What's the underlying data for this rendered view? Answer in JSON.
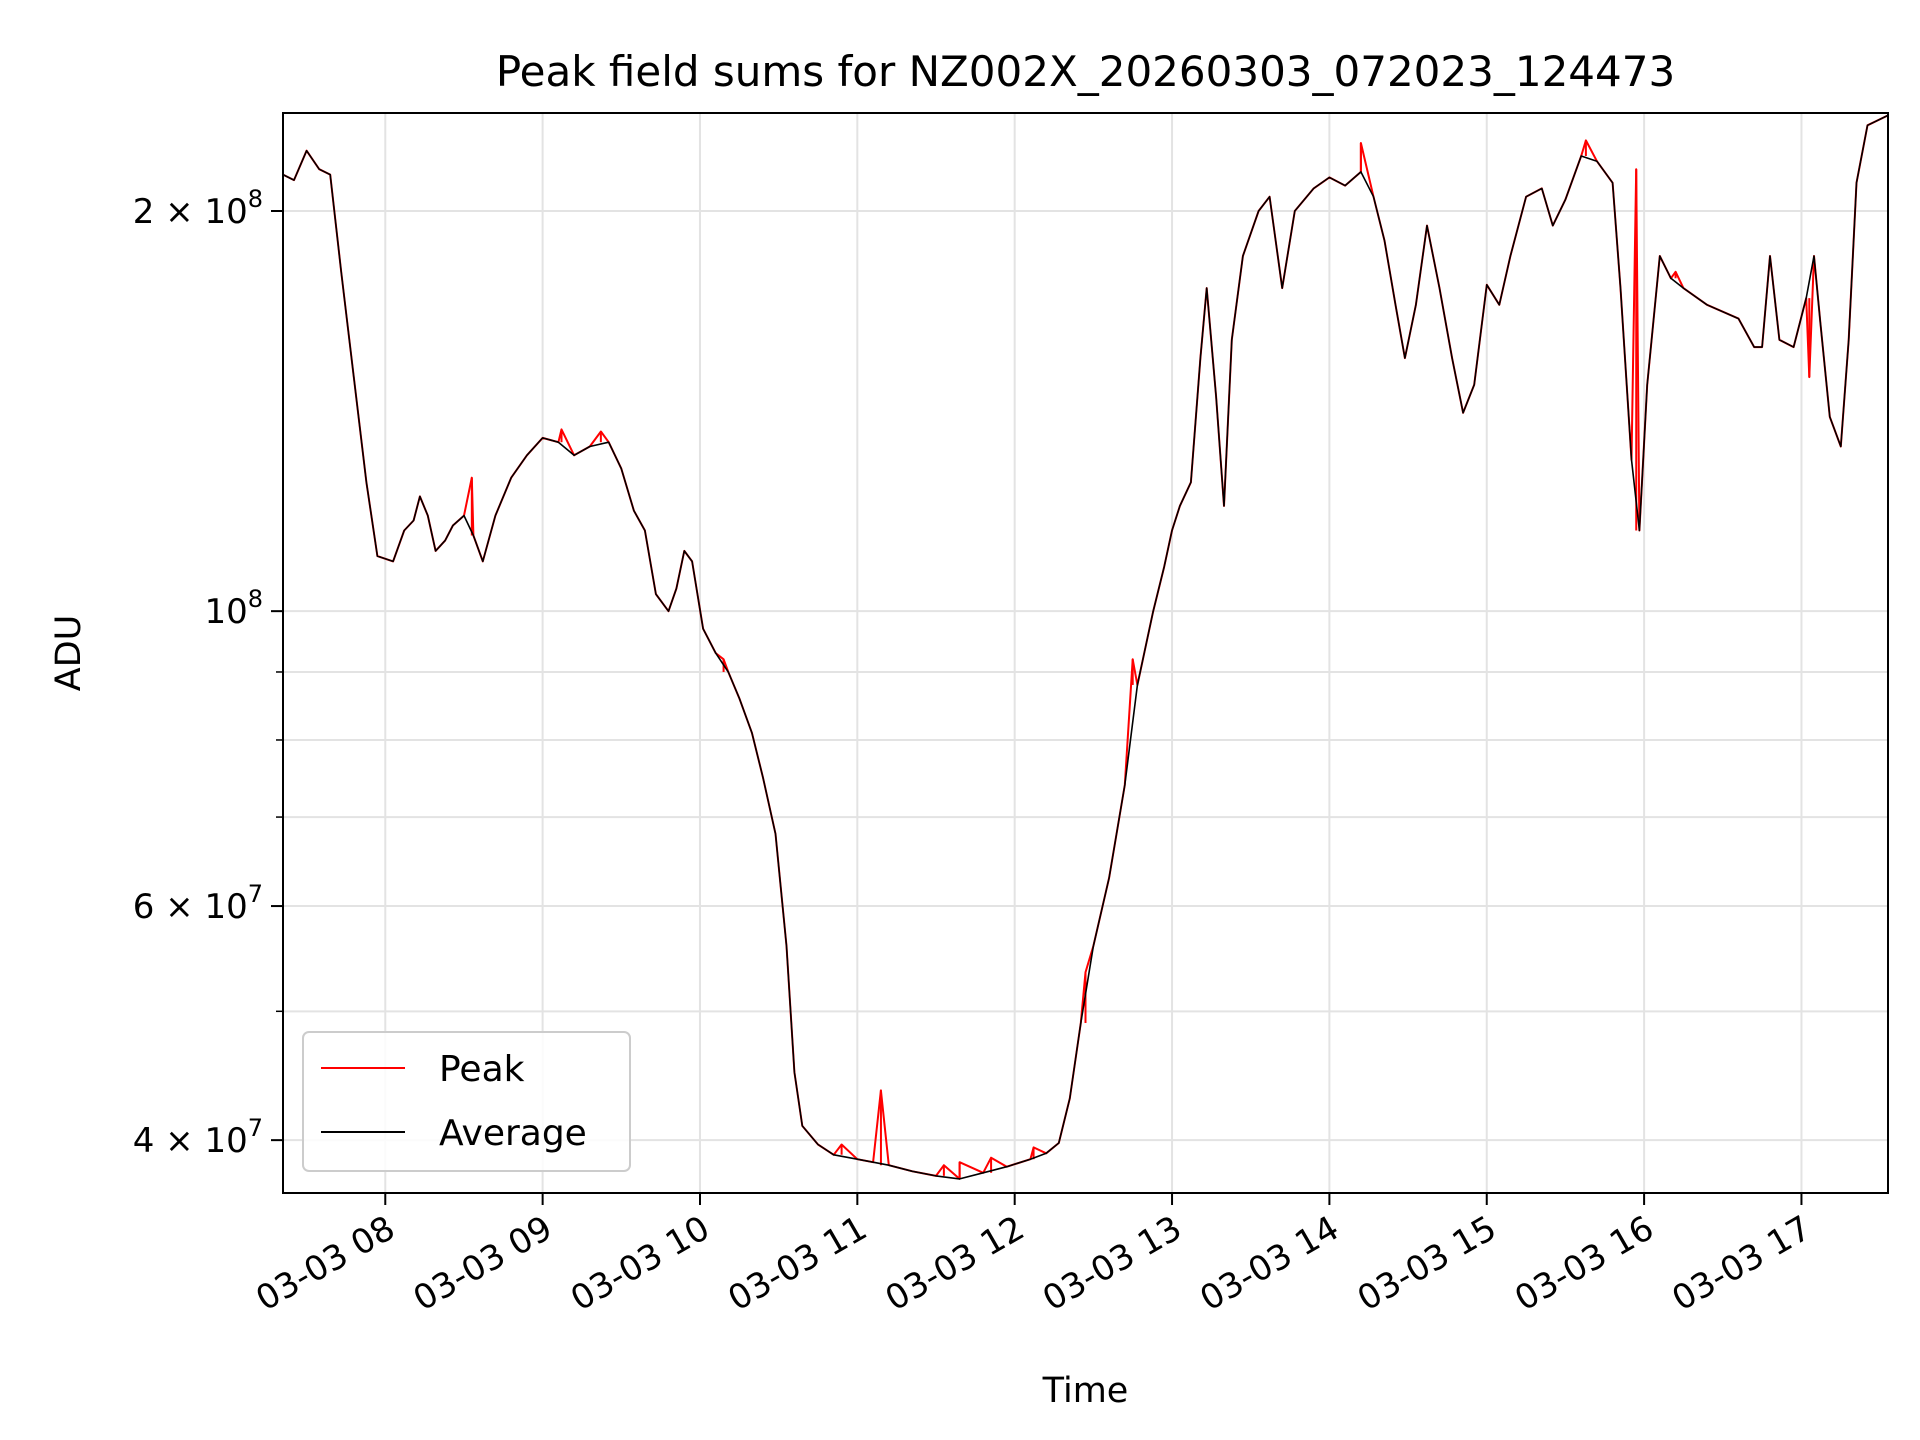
{
  "chart_data": {
    "type": "line",
    "title": "Peak field sums for NZ002X_20260303_072023_124473",
    "xlabel": "Time",
    "ylabel": "ADU",
    "x_unit": "hours of 2026-03-03",
    "xlim": [
      7.35,
      17.55
    ],
    "ylim": [
      36500000,
      237000000
    ],
    "yscale": "log",
    "grid": true,
    "legend_position": "lower-left",
    "x_ticks": [
      {
        "value": 8,
        "label": "03-03 08"
      },
      {
        "value": 9,
        "label": "03-03 09"
      },
      {
        "value": 10,
        "label": "03-03 10"
      },
      {
        "value": 11,
        "label": "03-03 11"
      },
      {
        "value": 12,
        "label": "03-03 12"
      },
      {
        "value": 13,
        "label": "03-03 13"
      },
      {
        "value": 14,
        "label": "03-03 14"
      },
      {
        "value": 15,
        "label": "03-03 15"
      },
      {
        "value": 16,
        "label": "03-03 16"
      },
      {
        "value": 17,
        "label": "03-03 17"
      }
    ],
    "y_major_ticks": [
      {
        "value": 40000000,
        "mantissa": "4",
        "exponent": "7"
      },
      {
        "value": 60000000,
        "mantissa": "6",
        "exponent": "7"
      },
      {
        "value": 100000000,
        "mantissa": "",
        "exponent": "8"
      },
      {
        "value": 200000000,
        "mantissa": "2",
        "exponent": "8"
      }
    ],
    "y_minor_ticks": [
      50000000,
      70000000,
      80000000,
      90000000
    ],
    "series": [
      {
        "name": "Peak",
        "color": "#ff0000",
        "spikes": [
          [
            8.55,
            126000000
          ],
          [
            9.12,
            137000000
          ],
          [
            9.37,
            136500000
          ],
          [
            10.15,
            92000000
          ],
          [
            10.9,
            39700000
          ],
          [
            11.15,
            43600000
          ],
          [
            11.55,
            38300000
          ],
          [
            11.65,
            38500000
          ],
          [
            11.85,
            38800000
          ],
          [
            12.12,
            39500000
          ],
          [
            12.45,
            53500000
          ],
          [
            12.75,
            92000000
          ],
          [
            14.2,
            225000000
          ],
          [
            15.63,
            226000000
          ],
          [
            15.95,
            215000000
          ],
          [
            16.2,
            180000000
          ],
          [
            17.05,
            150000000
          ]
        ]
      },
      {
        "name": "Average",
        "color": "#000000",
        "values": [
          [
            7.35,
            213000000
          ],
          [
            7.42,
            211000000
          ],
          [
            7.5,
            222000000
          ],
          [
            7.58,
            215000000
          ],
          [
            7.65,
            213000000
          ],
          [
            7.72,
            180000000
          ],
          [
            7.8,
            150000000
          ],
          [
            7.88,
            125000000
          ],
          [
            7.95,
            110000000
          ],
          [
            8.05,
            109000000
          ],
          [
            8.12,
            115000000
          ],
          [
            8.18,
            117000000
          ],
          [
            8.22,
            122000000
          ],
          [
            8.27,
            118000000
          ],
          [
            8.32,
            111000000
          ],
          [
            8.38,
            113000000
          ],
          [
            8.43,
            116000000
          ],
          [
            8.5,
            118000000
          ],
          [
            8.56,
            114000000
          ],
          [
            8.62,
            109000000
          ],
          [
            8.7,
            118000000
          ],
          [
            8.8,
            126000000
          ],
          [
            8.9,
            131000000
          ],
          [
            9.0,
            135000000
          ],
          [
            9.1,
            134000000
          ],
          [
            9.2,
            131000000
          ],
          [
            9.3,
            133000000
          ],
          [
            9.42,
            134000000
          ],
          [
            9.5,
            128000000
          ],
          [
            9.58,
            119000000
          ],
          [
            9.65,
            115000000
          ],
          [
            9.72,
            103000000
          ],
          [
            9.8,
            100000000
          ],
          [
            9.85,
            104000000
          ],
          [
            9.9,
            111000000
          ],
          [
            9.95,
            109000000
          ],
          [
            10.02,
            97000000
          ],
          [
            10.1,
            93000000
          ],
          [
            10.18,
            90000000
          ],
          [
            10.25,
            86000000
          ],
          [
            10.33,
            81000000
          ],
          [
            10.4,
            75000000
          ],
          [
            10.48,
            68000000
          ],
          [
            10.55,
            56000000
          ],
          [
            10.6,
            45000000
          ],
          [
            10.65,
            41000000
          ],
          [
            10.75,
            39700000
          ],
          [
            10.85,
            39000000
          ],
          [
            11.0,
            38700000
          ],
          [
            11.1,
            38500000
          ],
          [
            11.2,
            38300000
          ],
          [
            11.35,
            37900000
          ],
          [
            11.5,
            37600000
          ],
          [
            11.65,
            37400000
          ],
          [
            11.8,
            37800000
          ],
          [
            11.95,
            38200000
          ],
          [
            12.1,
            38700000
          ],
          [
            12.2,
            39100000
          ],
          [
            12.28,
            39800000
          ],
          [
            12.35,
            43000000
          ],
          [
            12.42,
            49000000
          ],
          [
            12.5,
            56000000
          ],
          [
            12.6,
            63000000
          ],
          [
            12.7,
            74000000
          ],
          [
            12.78,
            88000000
          ],
          [
            12.88,
            100000000
          ],
          [
            12.95,
            108000000
          ],
          [
            13.0,
            115000000
          ],
          [
            13.05,
            120000000
          ],
          [
            13.12,
            125000000
          ],
          [
            13.18,
            155000000
          ],
          [
            13.22,
            175000000
          ],
          [
            13.28,
            145000000
          ],
          [
            13.33,
            120000000
          ],
          [
            13.38,
            160000000
          ],
          [
            13.45,
            185000000
          ],
          [
            13.55,
            200000000
          ],
          [
            13.62,
            205000000
          ],
          [
            13.7,
            175000000
          ],
          [
            13.78,
            200000000
          ],
          [
            13.9,
            208000000
          ],
          [
            14.0,
            212000000
          ],
          [
            14.1,
            209000000
          ],
          [
            14.2,
            214000000
          ],
          [
            14.28,
            205000000
          ],
          [
            14.35,
            190000000
          ],
          [
            14.42,
            170000000
          ],
          [
            14.48,
            155000000
          ],
          [
            14.55,
            170000000
          ],
          [
            14.62,
            195000000
          ],
          [
            14.7,
            175000000
          ],
          [
            14.78,
            155000000
          ],
          [
            14.85,
            141000000
          ],
          [
            14.92,
            148000000
          ],
          [
            15.0,
            176000000
          ],
          [
            15.08,
            170000000
          ],
          [
            15.15,
            185000000
          ],
          [
            15.25,
            205000000
          ],
          [
            15.35,
            208000000
          ],
          [
            15.42,
            195000000
          ],
          [
            15.5,
            204000000
          ],
          [
            15.6,
            220000000
          ],
          [
            15.7,
            218000000
          ],
          [
            15.8,
            210000000
          ],
          [
            15.85,
            175000000
          ],
          [
            15.92,
            130000000
          ],
          [
            15.97,
            115000000
          ],
          [
            16.02,
            148000000
          ],
          [
            16.1,
            185000000
          ],
          [
            16.17,
            178000000
          ],
          [
            16.25,
            175000000
          ],
          [
            16.4,
            170000000
          ],
          [
            16.6,
            166000000
          ],
          [
            16.7,
            158000000
          ],
          [
            16.75,
            158000000
          ],
          [
            16.8,
            185000000
          ],
          [
            16.86,
            160000000
          ],
          [
            16.95,
            158000000
          ],
          [
            17.03,
            172000000
          ],
          [
            17.08,
            185000000
          ],
          [
            17.12,
            165000000
          ],
          [
            17.18,
            140000000
          ],
          [
            17.25,
            133000000
          ],
          [
            17.3,
            160000000
          ],
          [
            17.35,
            210000000
          ],
          [
            17.42,
            232000000
          ],
          [
            17.55,
            236000000
          ]
        ]
      }
    ]
  }
}
